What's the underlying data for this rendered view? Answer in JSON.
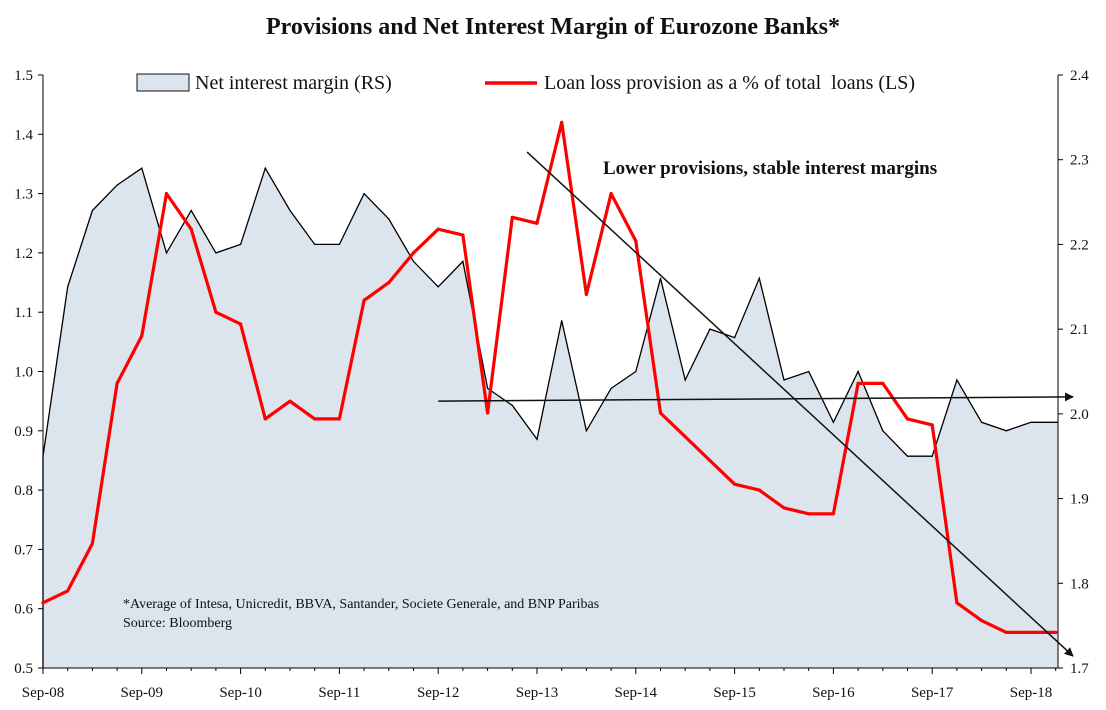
{
  "chart_data": {
    "type": "line",
    "title": "Provisions and Net Interest Margin of Eurozone Banks*",
    "x": [
      "Sep-08",
      "Dec-08",
      "Mar-09",
      "Jun-09",
      "Sep-09",
      "Dec-09",
      "Mar-10",
      "Jun-10",
      "Sep-10",
      "Dec-10",
      "Mar-11",
      "Jun-11",
      "Sep-11",
      "Dec-11",
      "Mar-12",
      "Jun-12",
      "Sep-12",
      "Dec-12",
      "Mar-13",
      "Jun-13",
      "Sep-13",
      "Dec-13",
      "Mar-14",
      "Jun-14",
      "Sep-14",
      "Dec-14",
      "Mar-15",
      "Jun-15",
      "Sep-15",
      "Dec-15",
      "Mar-16",
      "Jun-16",
      "Sep-16",
      "Dec-16",
      "Mar-17",
      "Jun-17",
      "Sep-17",
      "Dec-17",
      "Mar-18",
      "Jun-18",
      "Sep-18",
      "Dec-18"
    ],
    "x_tick_labels": [
      "Sep-08",
      "Sep-09",
      "Sep-10",
      "Sep-11",
      "Sep-12",
      "Sep-13",
      "Sep-14",
      "Sep-15",
      "Sep-16",
      "Sep-17",
      "Sep-18"
    ],
    "series": [
      {
        "name": "Net interest margin (RS)",
        "axis": "right",
        "style": "area",
        "color": "#dce4ee",
        "values": [
          1.95,
          2.15,
          2.24,
          2.27,
          2.29,
          2.19,
          2.24,
          2.19,
          2.2,
          2.29,
          2.24,
          2.2,
          2.2,
          2.26,
          2.23,
          2.18,
          2.15,
          2.18,
          2.03,
          2.01,
          1.97,
          2.11,
          1.98,
          2.03,
          2.05,
          2.16,
          2.04,
          2.1,
          2.09,
          2.16,
          2.04,
          2.05,
          1.99,
          2.05,
          1.98,
          1.95,
          1.95,
          2.04,
          1.99,
          1.98,
          1.99,
          1.99
        ]
      },
      {
        "name": "Loan loss provision as a % of total  loans (LS)",
        "axis": "left",
        "style": "line",
        "color": "#ff0000",
        "values": [
          0.61,
          0.63,
          0.71,
          0.98,
          1.06,
          1.3,
          1.24,
          1.1,
          1.08,
          0.92,
          0.95,
          0.92,
          0.92,
          1.12,
          1.15,
          1.2,
          1.24,
          1.23,
          0.93,
          1.26,
          1.25,
          1.42,
          1.13,
          1.3,
          1.22,
          0.93,
          0.89,
          0.85,
          0.81,
          0.8,
          0.77,
          0.76,
          0.76,
          0.98,
          0.98,
          0.92,
          0.91,
          0.61,
          0.58,
          0.56,
          0.56,
          0.56
        ]
      }
    ],
    "xlabel": "",
    "ylabel_left": "",
    "ylabel_right": "",
    "ylim_left": [
      0.5,
      1.5
    ],
    "ylim_right": [
      1.7,
      2.4
    ],
    "y_ticks_left": [
      "0.5",
      "0.6",
      "0.7",
      "0.8",
      "0.9",
      "1.0",
      "1.1",
      "1.2",
      "1.3",
      "1.4",
      "1.5"
    ],
    "y_ticks_right": [
      "1.7",
      "1.8",
      "1.9",
      "2.0",
      "2.1",
      "2.2",
      "2.3",
      "2.4"
    ],
    "legend_position": "top",
    "grid": false,
    "annotations": [
      {
        "text": "Lower provisions, stable interest margins",
        "arrows": [
          {
            "label": "declining-provisions-arrow",
            "from": {
              "x": 19.6,
              "y_left": 1.37
            },
            "to": {
              "x": 41.7,
              "y_left": 0.52
            }
          },
          {
            "label": "stable-margin-arrow",
            "from": {
              "x": 16,
              "y_right": 2.015
            },
            "to": {
              "x": 41.7,
              "y_right": 2.02
            }
          }
        ]
      }
    ],
    "footnote": [
      "*Average of Intesa, Unicredit, BBVA, Santander, Societe Generale, and BNP Paribas",
      "Source: Bloomberg"
    ]
  }
}
